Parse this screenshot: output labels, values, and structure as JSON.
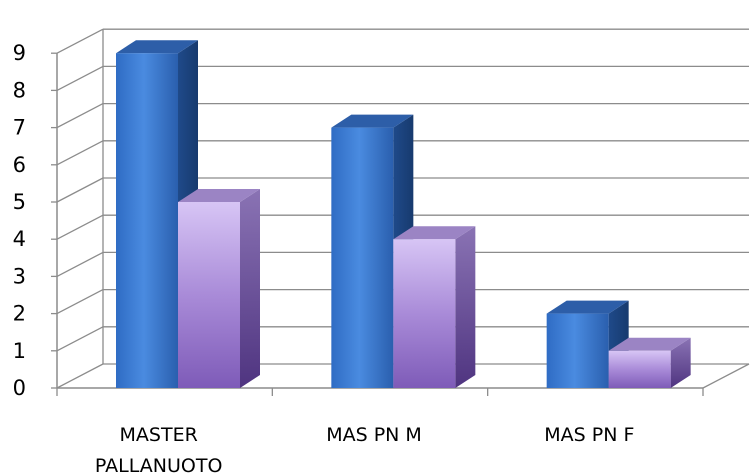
{
  "chart_data": {
    "type": "bar",
    "title": "",
    "xlabel": "",
    "ylabel": "",
    "categories": [
      [
        "MASTER",
        "PALLANUOTO"
      ],
      [
        "MAS PN M"
      ],
      [
        "MAS PN F"
      ]
    ],
    "series": [
      {
        "values": [
          9,
          7,
          2
        ],
        "color": "#3f7fd6"
      },
      {
        "values": [
          5,
          4,
          1
        ],
        "color": "#a98bd8"
      }
    ],
    "y_ticks": [
      "0",
      "1",
      "2",
      "3",
      "4",
      "5",
      "6",
      "7",
      "8",
      "9"
    ],
    "ylim": [
      0,
      9
    ],
    "grid": true,
    "style": "3d-clustered-column",
    "legend": "none"
  }
}
